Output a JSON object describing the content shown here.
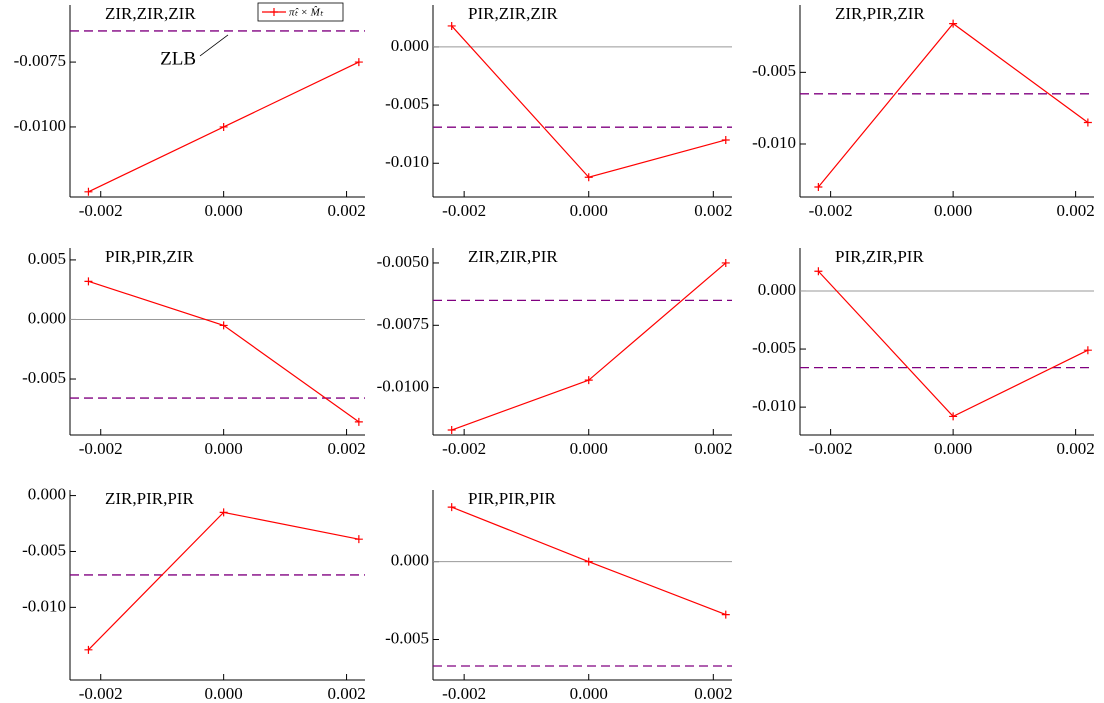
{
  "chart_data": [
    {
      "type": "line",
      "title": "ZIR,ZIR,ZIR",
      "x": [
        -0.0022,
        0,
        0.0022
      ],
      "xlim": [
        -0.0025,
        0.0023
      ],
      "xticks": [
        -0.002,
        {
          "value": 0,
          "label": "0.000"
        },
        0.002
      ],
      "ylim": [
        -0.0127,
        -0.0053
      ],
      "yticks": [
        -0.0075,
        {
          "value": -0.01,
          "label": "-0.0100"
        }
      ],
      "series": [
        {
          "name": "π̂ₜ × M̂ₜ",
          "color": "#ff0000",
          "values": [
            -0.0125,
            -0.01,
            -0.0075
          ]
        }
      ],
      "reference_line": {
        "value": -0.0063,
        "color": "#800080",
        "style": "dashed"
      },
      "zero_line": false,
      "legend": "upper right",
      "annotations": [
        {
          "text": "ZLB"
        }
      ]
    },
    {
      "type": "line",
      "title": "PIR,ZIR,ZIR",
      "x": [
        -0.0022,
        0,
        0.0022
      ],
      "xlim": [
        -0.0025,
        0.0023
      ],
      "xticks": [
        -0.002,
        {
          "value": 0,
          "label": "0.000"
        },
        0.002
      ],
      "ylim": [
        -0.0129,
        0.0036
      ],
      "yticks": [
        {
          "value": 0,
          "label": "0.000"
        },
        -0.005,
        {
          "value": -0.01,
          "label": "-0.010"
        }
      ],
      "series": [
        {
          "color": "#ff0000",
          "values": [
            0.0018,
            -0.0112,
            -0.008
          ]
        }
      ],
      "reference_line": {
        "value": -0.0069,
        "color": "#800080",
        "style": "dashed"
      },
      "zero_line": true
    },
    {
      "type": "line",
      "title": "ZIR,PIR,ZIR",
      "x": [
        -0.0022,
        0,
        0.0022
      ],
      "xlim": [
        -0.0025,
        0.0023
      ],
      "xticks": [
        -0.002,
        {
          "value": 0,
          "label": "0.000"
        },
        0.002
      ],
      "ylim": [
        -0.0137,
        -0.0003
      ],
      "yticks": [
        -0.005,
        {
          "value": -0.01,
          "label": "-0.010"
        }
      ],
      "series": [
        {
          "color": "#ff0000",
          "values": [
            -0.013,
            -0.0016,
            -0.0085
          ]
        }
      ],
      "reference_line": {
        "value": -0.0065,
        "color": "#800080",
        "style": "dashed"
      },
      "zero_line": true
    },
    {
      "type": "line",
      "title": "PIR,PIR,ZIR",
      "x": [
        -0.0022,
        0,
        0.0022
      ],
      "xlim": [
        -0.0025,
        0.0023
      ],
      "xticks": [
        -0.002,
        {
          "value": 0,
          "label": "0.000"
        },
        0.002
      ],
      "ylim": [
        -0.0097,
        0.006
      ],
      "yticks": [
        0.005,
        {
          "value": 0,
          "label": "0.000"
        },
        -0.005
      ],
      "series": [
        {
          "color": "#ff0000",
          "values": [
            0.0032,
            -0.0005,
            -0.0086
          ]
        }
      ],
      "reference_line": {
        "value": -0.0066,
        "color": "#800080",
        "style": "dashed"
      },
      "zero_line": true
    },
    {
      "type": "line",
      "title": "ZIR,ZIR,PIR",
      "x": [
        -0.0022,
        0,
        0.0022
      ],
      "xlim": [
        -0.0025,
        0.0023
      ],
      "xticks": [
        -0.002,
        {
          "value": 0,
          "label": "0.000"
        },
        0.002
      ],
      "ylim": [
        -0.0119,
        -0.0044
      ],
      "yticks": [
        {
          "value": -0.005,
          "label": "-0.0050"
        },
        -0.0075,
        {
          "value": -0.01,
          "label": "-0.0100"
        }
      ],
      "series": [
        {
          "color": "#ff0000",
          "values": [
            -0.0117,
            -0.0097,
            -0.005
          ]
        }
      ],
      "reference_line": {
        "value": -0.0065,
        "color": "#800080",
        "style": "dashed"
      },
      "zero_line": false
    },
    {
      "type": "line",
      "title": "PIR,ZIR,PIR",
      "x": [
        -0.0022,
        0,
        0.0022
      ],
      "xlim": [
        -0.0025,
        0.0023
      ],
      "xticks": [
        -0.002,
        {
          "value": 0,
          "label": "0.000"
        },
        0.002
      ],
      "ylim": [
        -0.0124,
        0.0037
      ],
      "yticks": [
        {
          "value": 0,
          "label": "0.000"
        },
        -0.005,
        {
          "value": -0.01,
          "label": "-0.010"
        }
      ],
      "series": [
        {
          "color": "#ff0000",
          "values": [
            0.0017,
            -0.0108,
            -0.0051
          ]
        }
      ],
      "reference_line": {
        "value": -0.0066,
        "color": "#800080",
        "style": "dashed"
      },
      "zero_line": true
    },
    {
      "type": "line",
      "title": "ZIR,PIR,PIR",
      "x": [
        -0.0022,
        0,
        0.0022
      ],
      "xlim": [
        -0.0025,
        0.0023
      ],
      "xticks": [
        -0.002,
        {
          "value": 0,
          "label": "0.000"
        },
        0.002
      ],
      "ylim": [
        -0.0165,
        0.0005
      ],
      "yticks": [
        {
          "value": 0,
          "label": "0.000"
        },
        -0.005,
        {
          "value": -0.01,
          "label": "-0.010"
        }
      ],
      "series": [
        {
          "color": "#ff0000",
          "values": [
            -0.0138,
            -0.0015,
            -0.0039
          ]
        }
      ],
      "reference_line": {
        "value": -0.0071,
        "color": "#800080",
        "style": "dashed"
      },
      "zero_line": false
    },
    {
      "type": "line",
      "title": "PIR,PIR,PIR",
      "x": [
        -0.0022,
        0,
        0.0022
      ],
      "xlim": [
        -0.0025,
        0.0023
      ],
      "xticks": [
        -0.002,
        {
          "value": 0,
          "label": "0.000"
        },
        0.002
      ],
      "ylim": [
        -0.0076,
        0.0046
      ],
      "yticks": [
        {
          "value": 0,
          "label": "0.000"
        },
        -0.005
      ],
      "series": [
        {
          "color": "#ff0000",
          "values": [
            0.0035,
            0,
            -0.0034
          ]
        }
      ],
      "reference_line": {
        "value": -0.0067,
        "color": "#800080",
        "style": "dashed"
      },
      "zero_line": true
    }
  ]
}
